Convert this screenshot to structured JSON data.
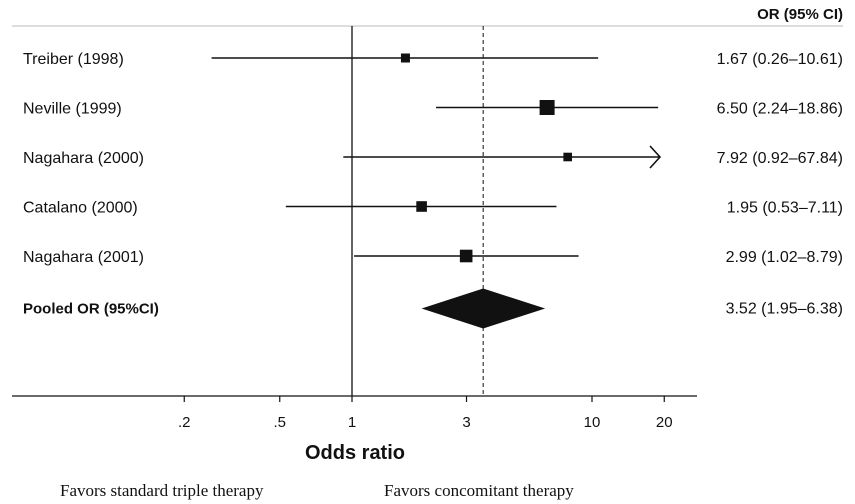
{
  "chart_data": {
    "type": "forest",
    "column_header": "OR (95% CI)",
    "xlabel": "Odds ratio",
    "x_scale": "log",
    "xlim": [
      0.1,
      25
    ],
    "ticks": [
      {
        "value": 0.2,
        "label": ".2"
      },
      {
        "value": 0.5,
        "label": ".5"
      },
      {
        "value": 1,
        "label": "1"
      },
      {
        "value": 3,
        "label": "3"
      },
      {
        "value": 10,
        "label": "10"
      },
      {
        "value": 20,
        "label": "20"
      }
    ],
    "null_line": 1,
    "pooled_line": 3.52,
    "studies": [
      {
        "label": "Treiber (1998)",
        "or": 1.67,
        "lower": 0.26,
        "upper": 10.61,
        "ci_text": "1.67 (0.26–10.61)",
        "weight": 0.25
      },
      {
        "label": "Neville (1999)",
        "or": 6.5,
        "lower": 2.24,
        "upper": 18.86,
        "ci_text": "6.50 (2.24–18.86)",
        "weight": 1.0
      },
      {
        "label": "Nagahara (2000)",
        "or": 7.92,
        "lower": 0.92,
        "upper": 67.84,
        "ci_text": "7.92 (0.92–67.84)",
        "weight": 0.2,
        "upper_truncated": true
      },
      {
        "label": "Catalano (2000)",
        "or": 1.95,
        "lower": 0.53,
        "upper": 7.11,
        "ci_text": "1.95 (0.53–7.11)",
        "weight": 0.45
      },
      {
        "label": "Nagahara (2001)",
        "or": 2.99,
        "lower": 1.02,
        "upper": 8.79,
        "ci_text": "2.99 (1.02–8.79)",
        "weight": 0.7
      }
    ],
    "pooled": {
      "label": "Pooled OR (95%CI)",
      "or": 3.52,
      "lower": 1.95,
      "upper": 6.38,
      "ci_text": "3.52 (1.95–6.38)"
    },
    "favors_left": "Favors standard triple therapy",
    "favors_right": "Favors concomitant therapy",
    "colors": {
      "ink": "#111111",
      "header_rule": "#bbbbbb"
    }
  }
}
